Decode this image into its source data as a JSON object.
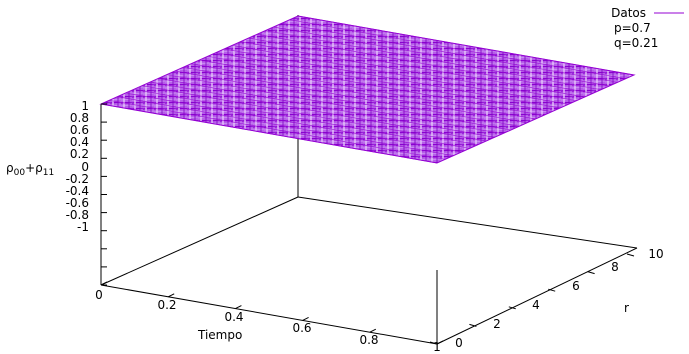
{
  "chart_data": {
    "type": "surface",
    "title": "",
    "xlabel": "Tiempo",
    "ylabel": "r",
    "zlabel_main": "ρ00+ρ11",
    "zlabel_parts": [
      {
        "text": "ρ",
        "sub": "00"
      },
      {
        "text": "+",
        "sub": ""
      },
      {
        "text": "ρ",
        "sub": "11"
      }
    ],
    "xlim": [
      0,
      1
    ],
    "ylim": [
      0,
      10
    ],
    "zlim": [
      -1,
      1
    ],
    "x_tick_labels": [
      "0",
      "0.2",
      "0.4",
      "0.6",
      "0.8",
      "1"
    ],
    "y_tick_labels": [
      "0",
      "2",
      "4",
      "6",
      "8",
      "10"
    ],
    "z_tick_labels": [
      "1",
      "0.8",
      "0.6",
      "0.4",
      "0.2",
      "0",
      "-0.2",
      "-0.4",
      "-0.6",
      "-0.8",
      "-1"
    ],
    "grid": false,
    "legend_position": "top-right",
    "series": [
      {
        "name": "Datos",
        "color": "#9400d3",
        "x": [
          0,
          0.2,
          0.4,
          0.6,
          0.8,
          1
        ],
        "y": [
          0,
          2,
          4,
          6,
          8,
          10
        ],
        "z_at_x": [
          1,
          1,
          1,
          1,
          1,
          1
        ]
      }
    ],
    "annotations": [
      "p=0.7",
      "q=0.21"
    ]
  }
}
